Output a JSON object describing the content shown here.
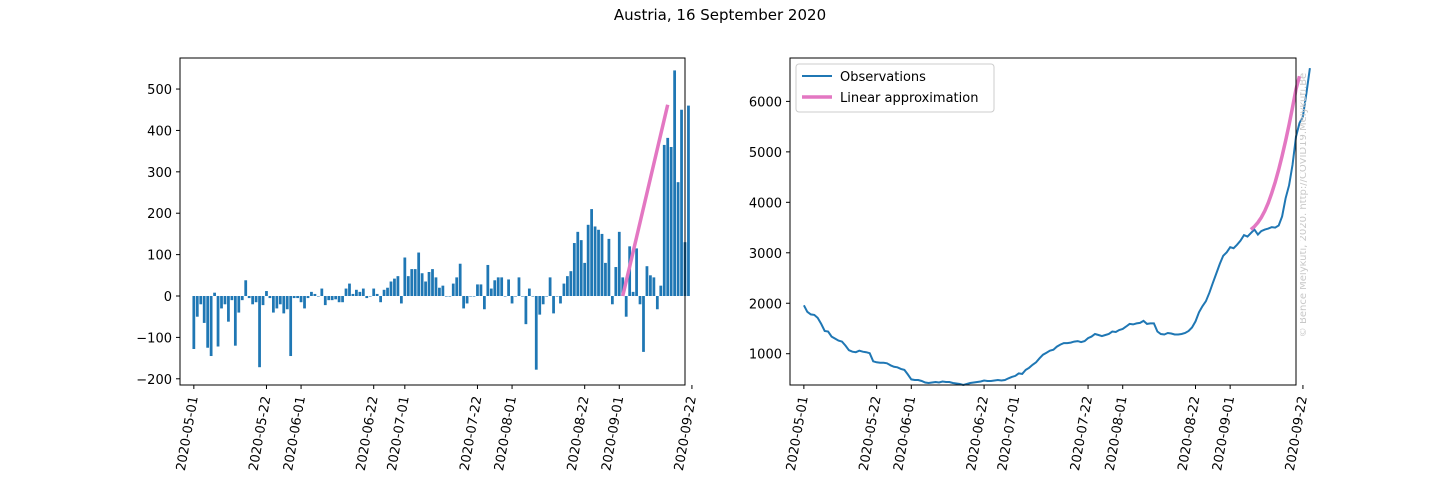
{
  "figure": {
    "title": "Austria, 16 September 2020",
    "watermark": "© Bence Melykuti, 2020. http://COVID19.Melykuti.Be"
  },
  "colors": {
    "bar": "#1f77b4",
    "observations": "#1f77b4",
    "linear": "#e377c2",
    "axis": "#000000"
  },
  "chart_data": [
    {
      "type": "bar",
      "title": "",
      "xlabel": "",
      "ylabel": "",
      "x_start": "2020-05-01",
      "x_end": "2020-09-15",
      "xlim": [
        "2020-04-27",
        "2020-09-20"
      ],
      "ylim": [
        -215,
        575
      ],
      "xticks": [
        "2020-05-01",
        "2020-05-22",
        "2020-06-01",
        "2020-06-22",
        "2020-07-01",
        "2020-07-22",
        "2020-08-01",
        "2020-08-22",
        "2020-09-01",
        "2020-09-22"
      ],
      "yticks": [
        -200,
        -100,
        0,
        100,
        200,
        300,
        400,
        500
      ],
      "values": [
        -128,
        -50,
        -20,
        -65,
        -125,
        -145,
        8,
        -122,
        -30,
        -20,
        -62,
        -10,
        -120,
        -40,
        -10,
        38,
        -5,
        -20,
        -15,
        -172,
        -22,
        12,
        -5,
        -40,
        -30,
        -20,
        -42,
        -32,
        -145,
        -5,
        -5,
        -15,
        -30,
        -5,
        10,
        5,
        0,
        18,
        -22,
        -10,
        -10,
        -8,
        -15,
        -15,
        18,
        30,
        5,
        15,
        10,
        18,
        -5,
        0,
        18,
        5,
        -15,
        15,
        20,
        35,
        42,
        48,
        -18,
        93,
        48,
        65,
        65,
        105,
        55,
        35,
        58,
        65,
        45,
        20,
        25,
        0,
        0,
        30,
        45,
        78,
        -30,
        -18,
        0,
        0,
        28,
        28,
        -32,
        75,
        18,
        38,
        45,
        45,
        0,
        40,
        -18,
        0,
        45,
        0,
        -68,
        18,
        0,
        -178,
        -45,
        -20,
        0,
        45,
        -42,
        0,
        -18,
        30,
        48,
        60,
        128,
        155,
        135,
        80,
        172,
        210,
        168,
        160,
        150,
        80,
        138,
        -20,
        70,
        155,
        45,
        -50,
        120,
        10,
        115,
        -20,
        -135,
        72,
        50,
        45,
        -32,
        25,
        365,
        382,
        360,
        545,
        275,
        450,
        130,
        460
      ],
      "fit_line": {
        "name": "Linear approximation",
        "x": [
          "2020-09-02",
          "2020-09-15"
        ],
        "y": [
          0,
          462
        ]
      }
    },
    {
      "type": "line",
      "title": "",
      "xlabel": "",
      "ylabel": "",
      "x_start": "2020-05-01",
      "xlim": [
        "2020-04-27",
        "2020-09-20"
      ],
      "ylim": [
        380,
        6860
      ],
      "xticks": [
        "2020-05-01",
        "2020-05-22",
        "2020-06-01",
        "2020-06-22",
        "2020-07-01",
        "2020-07-22",
        "2020-08-01",
        "2020-08-22",
        "2020-09-01",
        "2020-09-22"
      ],
      "yticks": [
        1000,
        2000,
        3000,
        4000,
        5000,
        6000
      ],
      "legend_position": "top-left",
      "series": [
        {
          "name": "Observations",
          "values": [
            1960,
            1830,
            1780,
            1770,
            1710,
            1590,
            1450,
            1440,
            1340,
            1300,
            1260,
            1240,
            1160,
            1070,
            1040,
            1030,
            1060,
            1040,
            1030,
            1010,
            850,
            830,
            820,
            820,
            810,
            770,
            740,
            730,
            700,
            680,
            590,
            490,
            480,
            480,
            460,
            430,
            420,
            430,
            440,
            430,
            450,
            440,
            440,
            420,
            410,
            400,
            380,
            400,
            420,
            430,
            440,
            450,
            470,
            460,
            460,
            470,
            480,
            470,
            480,
            510,
            540,
            560,
            610,
            600,
            680,
            720,
            780,
            830,
            910,
            980,
            1020,
            1060,
            1080,
            1140,
            1180,
            1210,
            1210,
            1220,
            1240,
            1250,
            1230,
            1250,
            1310,
            1340,
            1390,
            1370,
            1350,
            1370,
            1390,
            1440,
            1430,
            1470,
            1490,
            1540,
            1590,
            1580,
            1600,
            1610,
            1650,
            1590,
            1600,
            1600,
            1440,
            1390,
            1380,
            1410,
            1400,
            1380,
            1380,
            1390,
            1410,
            1450,
            1520,
            1640,
            1820,
            1940,
            2040,
            2210,
            2400,
            2590,
            2780,
            2940,
            3010,
            3110,
            3090,
            3160,
            3240,
            3350,
            3320,
            3390,
            3460,
            3360,
            3430,
            3460,
            3480,
            3510,
            3500,
            3540,
            3720,
            4080,
            4340,
            4740,
            5300,
            5570,
            5700,
            6160,
            6660
          ]
        },
        {
          "name": "Linear approximation",
          "x_start_index": 129,
          "values": [
            3460,
            3520,
            3600,
            3700,
            3830,
            3990,
            4180,
            4400,
            4650,
            4920,
            5220,
            5540,
            5880,
            6240,
            6500
          ]
        }
      ]
    }
  ]
}
